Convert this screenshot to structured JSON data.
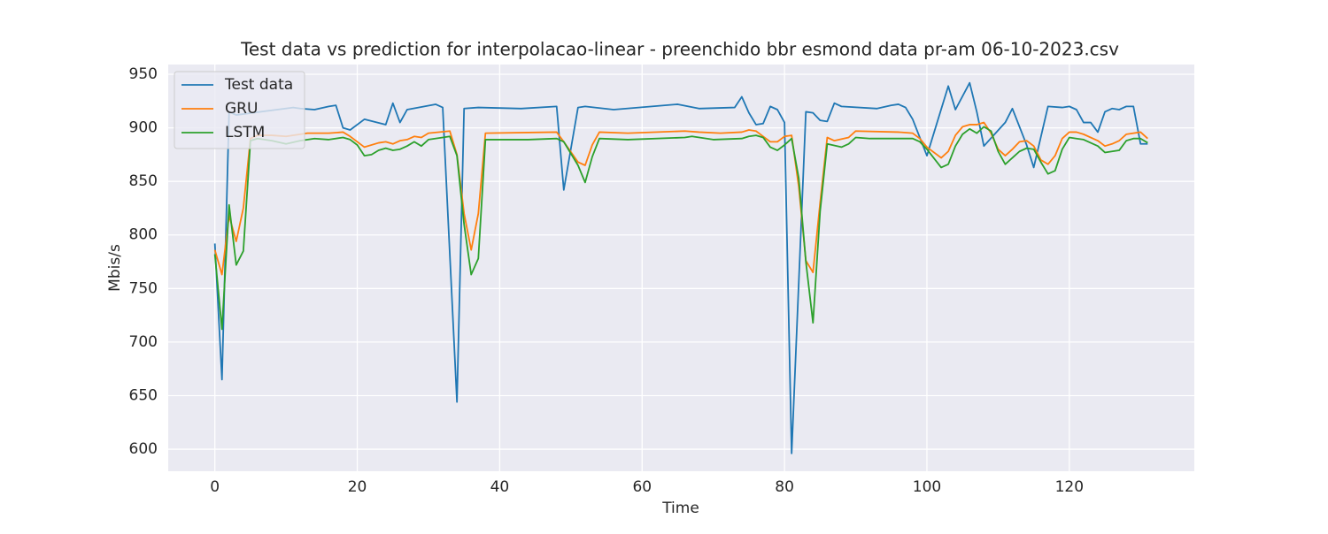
{
  "chart_data": {
    "type": "line",
    "title": "Test data vs prediction for interpolacao-linear - preenchido bbr esmond data pr-am 06-10-2023.csv",
    "x_label": "Time",
    "y_label": "Mbis/s",
    "xlim": [
      -6.55,
      137.55
    ],
    "xticks": [
      0,
      20,
      40,
      60,
      80,
      100,
      120
    ],
    "ylim": [
      579.4,
      959.1
    ],
    "yticks": [
      600,
      650,
      700,
      750,
      800,
      850,
      900,
      950
    ],
    "grid": true,
    "legend": "upper left",
    "series": [
      {
        "name": "Test data",
        "color": "#1f77b4",
        "x": [
          0,
          1,
          2,
          3,
          11,
          12,
          14,
          16,
          17,
          18,
          19,
          21,
          24,
          25,
          26,
          27,
          31,
          32,
          34,
          35,
          37,
          43,
          48,
          49,
          51,
          52,
          56,
          65,
          68,
          73,
          74,
          75,
          76,
          77,
          78,
          79,
          80,
          81,
          83,
          84,
          85,
          86,
          87,
          88,
          93,
          95,
          96,
          97,
          98,
          100,
          103,
          104,
          106,
          107,
          108,
          111,
          112,
          114,
          115,
          117,
          119,
          120,
          121,
          122,
          123,
          124,
          125,
          126,
          127,
          128,
          129,
          130,
          131
        ],
        "values": [
          792,
          665,
          915,
          912,
          919,
          918,
          917,
          920,
          921,
          900,
          898,
          908,
          903,
          923,
          905,
          917,
          922,
          919,
          644,
          918,
          919,
          918,
          920,
          842,
          919,
          920,
          917,
          922,
          918,
          919,
          929,
          914,
          903,
          904,
          920,
          917,
          905,
          596,
          915,
          914,
          907,
          906,
          923,
          920,
          918,
          921,
          922,
          919,
          908,
          874,
          939,
          917,
          942,
          915,
          883,
          905,
          918,
          884,
          863,
          920,
          919,
          920,
          917,
          905,
          905,
          896,
          915,
          918,
          917,
          920,
          920,
          885,
          885
        ]
      },
      {
        "name": "GRU",
        "color": "#ff7f0e",
        "x": [
          0,
          1,
          2,
          3,
          4,
          5,
          6,
          8,
          10,
          13,
          16,
          18,
          19,
          21,
          23,
          24,
          25,
          26,
          27,
          28,
          29,
          30,
          33,
          34,
          35,
          36,
          37,
          38,
          48,
          49,
          51,
          52,
          53,
          54,
          58,
          66,
          68,
          71,
          74,
          75,
          76,
          77,
          78,
          79,
          80,
          81,
          82,
          83,
          84,
          85,
          86,
          87,
          89,
          90,
          96,
          98,
          99,
          100,
          102,
          103,
          104,
          105,
          106,
          107,
          108,
          109,
          110,
          111,
          112,
          113,
          114,
          115,
          116,
          117,
          118,
          119,
          120,
          121,
          122,
          124,
          125,
          126,
          127,
          128,
          130,
          131
        ],
        "values": [
          786,
          763,
          818,
          794,
          825,
          890,
          893,
          893,
          892,
          895,
          895,
          896,
          892,
          882,
          886,
          887,
          885,
          888,
          889,
          892,
          891,
          895,
          897,
          875,
          820,
          786,
          820,
          895,
          896,
          887,
          868,
          865,
          884,
          896,
          895,
          897,
          896,
          895,
          896,
          898,
          897,
          892,
          887,
          887,
          892,
          893,
          845,
          776,
          765,
          830,
          891,
          888,
          891,
          897,
          896,
          895,
          890,
          882,
          872,
          878,
          893,
          901,
          903,
          903,
          905,
          895,
          880,
          874,
          880,
          887,
          888,
          883,
          870,
          866,
          874,
          890,
          896,
          896,
          894,
          888,
          883,
          885,
          888,
          894,
          896,
          890
        ]
      },
      {
        "name": "LSTM",
        "color": "#2ca02c",
        "x": [
          0,
          1,
          2,
          3,
          4,
          5,
          6,
          8,
          10,
          12,
          14,
          16,
          18,
          19,
          20,
          21,
          22,
          23,
          24,
          25,
          26,
          27,
          28,
          29,
          30,
          32,
          33,
          34,
          35,
          36,
          37,
          38,
          44,
          48,
          49,
          51,
          52,
          53,
          54,
          58,
          66,
          67,
          70,
          74,
          75,
          76,
          77,
          78,
          79,
          80,
          81,
          82,
          83,
          84,
          85,
          86,
          88,
          89,
          90,
          92,
          96,
          98,
          99,
          100,
          102,
          103,
          104,
          105,
          106,
          107,
          108,
          109,
          110,
          111,
          112,
          113,
          114,
          115,
          116,
          117,
          118,
          119,
          120,
          121,
          122,
          123,
          124,
          125,
          126,
          127,
          128,
          129,
          130,
          131
        ],
        "values": [
          782,
          712,
          828,
          772,
          785,
          888,
          890,
          888,
          885,
          888,
          890,
          889,
          891,
          889,
          884,
          874,
          875,
          879,
          881,
          879,
          880,
          883,
          887,
          883,
          889,
          891,
          892,
          874,
          810,
          763,
          778,
          889,
          889,
          890,
          887,
          865,
          849,
          873,
          890,
          889,
          891,
          892,
          889,
          890,
          892,
          893,
          891,
          882,
          879,
          884,
          890,
          853,
          775,
          718,
          822,
          885,
          882,
          885,
          891,
          890,
          890,
          890,
          887,
          880,
          863,
          866,
          883,
          894,
          899,
          895,
          901,
          897,
          878,
          866,
          872,
          878,
          881,
          880,
          868,
          857,
          860,
          880,
          891,
          890,
          889,
          886,
          883,
          877,
          878,
          879,
          888,
          890,
          890,
          886
        ]
      }
    ]
  }
}
